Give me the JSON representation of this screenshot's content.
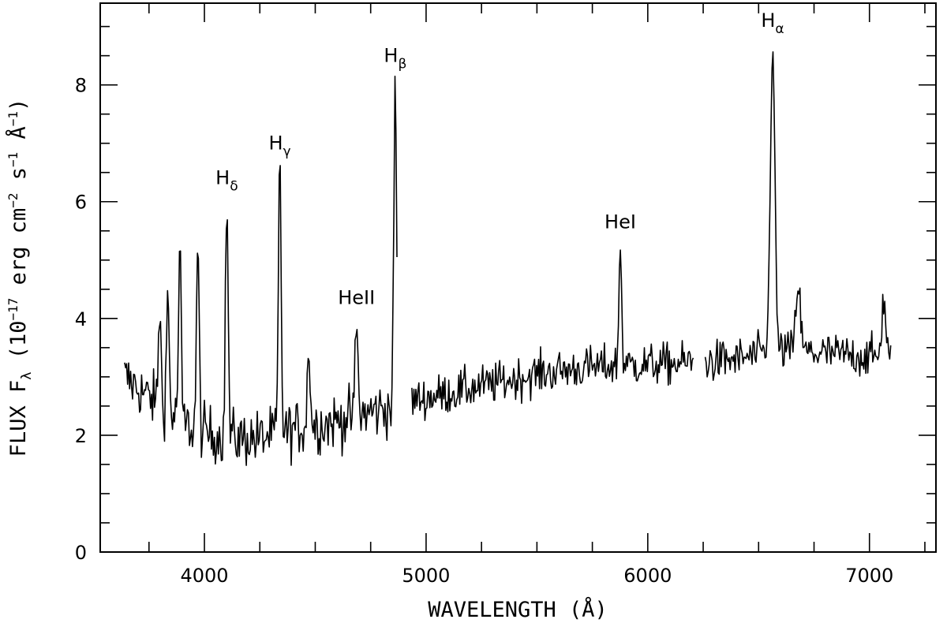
{
  "chart_data": {
    "type": "line",
    "title": "",
    "xlabel": "WAVELENGTH (Å)",
    "ylabel": {
      "prefix": "FLUX F",
      "sub": "λ",
      "units": [
        {
          "text": " (10"
        },
        {
          "sup": "−17"
        },
        {
          "text": " erg cm"
        },
        {
          "sup": "−2"
        },
        {
          "text": " s"
        },
        {
          "sup": "−1"
        },
        {
          "text": " Å"
        },
        {
          "sup": "−1"
        },
        {
          "text": ")"
        }
      ]
    },
    "xlim": [
      3530,
      7300
    ],
    "ylim": [
      0,
      9.4
    ],
    "xticks": [
      4000,
      5000,
      6000,
      7000
    ],
    "xtick_labels": [
      "4000",
      "5000",
      "6000",
      "7000"
    ],
    "yticks": [
      0,
      2,
      4,
      6,
      8
    ],
    "ytick_labels": [
      "0",
      "2",
      "4",
      "6",
      "8"
    ],
    "grid": false,
    "continuum": [
      [
        3640,
        3.0
      ],
      [
        3750,
        2.65
      ],
      [
        3850,
        2.35
      ],
      [
        3950,
        2.1
      ],
      [
        4050,
        2.0
      ],
      [
        4150,
        1.95
      ],
      [
        4250,
        1.95
      ],
      [
        4350,
        2.05
      ],
      [
        4450,
        2.15
      ],
      [
        4550,
        2.2
      ],
      [
        4650,
        2.3
      ],
      [
        4750,
        2.4
      ],
      [
        4860,
        2.5
      ],
      [
        4950,
        2.6
      ],
      [
        5100,
        2.72
      ],
      [
        5300,
        2.88
      ],
      [
        5500,
        3.05
      ],
      [
        5700,
        3.15
      ],
      [
        5900,
        3.2
      ],
      [
        6100,
        3.22
      ],
      [
        6200,
        3.25
      ],
      [
        6250,
        3.25
      ],
      [
        6400,
        3.3
      ],
      [
        6600,
        3.45
      ],
      [
        6800,
        3.4
      ],
      [
        7000,
        3.35
      ],
      [
        7100,
        3.3
      ]
    ],
    "gaps": [
      [
        4870,
        4935
      ],
      [
        6205,
        6255
      ]
    ],
    "emission_lines": [
      {
        "label": "Hδ",
        "base": "H",
        "sub": "δ",
        "x": 4101,
        "peak": 6.0
      },
      {
        "label": "Hγ",
        "base": "H",
        "sub": "γ",
        "x": 4340,
        "peak": 6.6
      },
      {
        "label": "HeII",
        "base": "HeII",
        "sub": "",
        "x": 4686,
        "peak": 3.95
      },
      {
        "label": "Hβ",
        "base": "H",
        "sub": "β",
        "x": 4861,
        "peak": 8.1
      },
      {
        "label": "HeI",
        "base": "HeI",
        "sub": "",
        "x": 5876,
        "peak": 5.25
      },
      {
        "label": "Hα",
        "base": "H",
        "sub": "α",
        "x": 6563,
        "peak": 8.7
      }
    ],
    "minor_peaks": [
      {
        "x": 3798,
        "peak": 4.15
      },
      {
        "x": 3835,
        "peak": 4.4
      },
      {
        "x": 3889,
        "peak": 5.1
      },
      {
        "x": 3970,
        "peak": 5.2
      },
      {
        "x": 4471,
        "peak": 3.6
      },
      {
        "x": 6678,
        "peak": 4.6
      },
      {
        "x": 7065,
        "peak": 4.3
      }
    ],
    "noise_sigma": 0.3,
    "color": "#000000"
  }
}
